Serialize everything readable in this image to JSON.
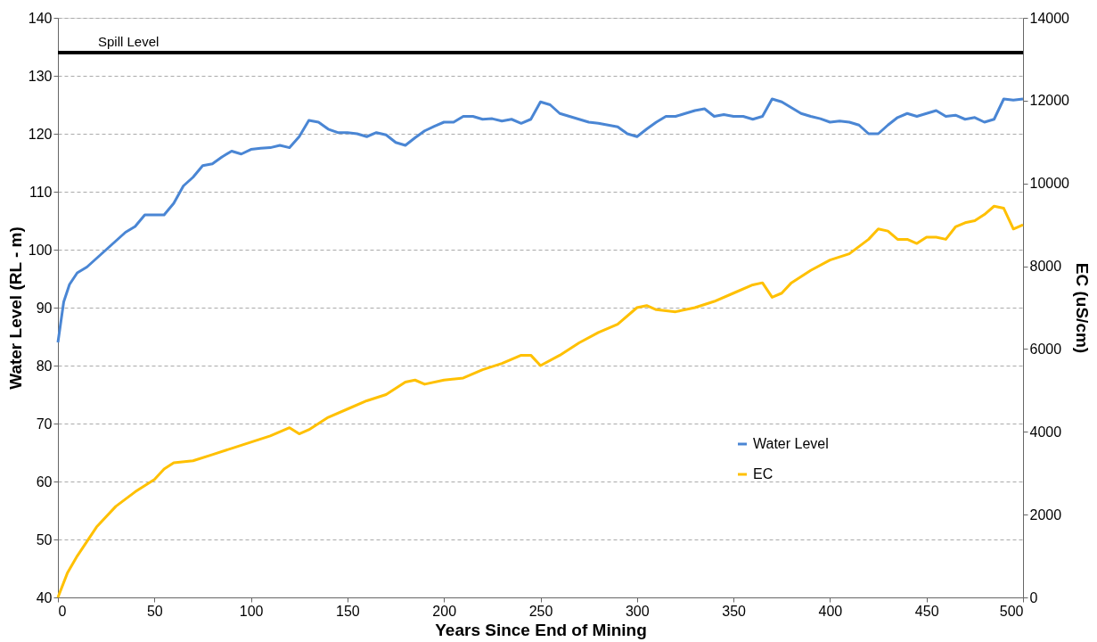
{
  "chart_data": {
    "type": "line",
    "xlabel": "Years Since End of Mining",
    "ylabel": "Water Level (RL - m)",
    "y2label": "EC (uS/cm)",
    "xlim": [
      0,
      500
    ],
    "xticks": [
      0,
      50,
      100,
      150,
      200,
      250,
      300,
      350,
      400,
      450,
      500
    ],
    "ylim": [
      40,
      140
    ],
    "yticks": [
      40,
      50,
      60,
      70,
      80,
      90,
      100,
      110,
      120,
      130,
      140
    ],
    "y2lim": [
      0,
      14000
    ],
    "y2ticks": [
      0,
      2000,
      4000,
      6000,
      8000,
      10000,
      12000,
      14000
    ],
    "grid": "y",
    "legend": "bottom right",
    "ref_lines": [
      {
        "axis": "y",
        "value": 134,
        "label": "Spill Level",
        "color": "#000000"
      }
    ],
    "series": [
      {
        "name": "Water Level",
        "color": "#4a86d4",
        "x": [
          0,
          3,
          6,
          10,
          15,
          20,
          25,
          30,
          35,
          40,
          45,
          50,
          55,
          60,
          65,
          70,
          75,
          80,
          85,
          90,
          95,
          100,
          105,
          110,
          115,
          120,
          125,
          130,
          135,
          140,
          145,
          150,
          155,
          160,
          165,
          170,
          175,
          180,
          185,
          190,
          195,
          200,
          205,
          210,
          215,
          220,
          225,
          230,
          235,
          240,
          245,
          250,
          255,
          260,
          265,
          270,
          275,
          280,
          285,
          290,
          295,
          300,
          305,
          310,
          315,
          320,
          325,
          330,
          335,
          340,
          345,
          350,
          355,
          360,
          365,
          370,
          375,
          380,
          385,
          390,
          395,
          400,
          405,
          410,
          415,
          420,
          425,
          430,
          435,
          440,
          445,
          450,
          455,
          460,
          465,
          470,
          475,
          480,
          485,
          490,
          495,
          500
        ],
        "values": [
          84,
          91,
          94,
          96,
          97,
          98.5,
          100,
          101.5,
          103,
          104,
          106,
          106,
          106,
          108,
          111,
          112.5,
          114.5,
          114.8,
          116,
          117,
          116.5,
          117.3,
          117.5,
          117.6,
          118,
          117.6,
          119.5,
          122.3,
          122,
          120.8,
          120.2,
          120.2,
          120,
          119.5,
          120.2,
          119.8,
          118.5,
          118,
          119.3,
          120.5,
          121.3,
          122,
          122,
          123,
          123,
          122.5,
          122.6,
          122.2,
          122.5,
          121.8,
          122.5,
          125.5,
          125,
          123.5,
          123,
          122.5,
          122,
          121.8,
          121.5,
          121.2,
          120,
          119.5,
          120.8,
          122,
          123,
          123,
          123.5,
          124,
          124.3,
          123,
          123.3,
          123,
          123,
          122.5,
          123,
          126,
          125.5,
          124.5,
          123.5,
          123,
          122.6,
          122,
          122.2,
          122,
          121.5,
          120,
          120,
          121.5,
          122.8,
          123.5,
          123,
          123.5,
          124,
          123,
          123.2,
          122.5,
          122.8,
          122,
          122.5,
          126,
          125.8,
          126
        ]
      },
      {
        "name": "EC",
        "color": "#ffc000",
        "axis": "y2",
        "x": [
          0,
          5,
          10,
          20,
          30,
          40,
          50,
          55,
          60,
          70,
          80,
          90,
          100,
          110,
          120,
          125,
          130,
          140,
          150,
          160,
          170,
          180,
          185,
          190,
          200,
          210,
          220,
          230,
          240,
          245,
          250,
          260,
          270,
          280,
          290,
          300,
          305,
          310,
          320,
          330,
          340,
          350,
          360,
          365,
          370,
          375,
          380,
          390,
          400,
          410,
          420,
          425,
          430,
          435,
          440,
          445,
          450,
          455,
          460,
          465,
          470,
          475,
          480,
          485,
          490,
          495,
          500
        ],
        "values": [
          0,
          600,
          1000,
          1700,
          2200,
          2550,
          2850,
          3100,
          3250,
          3300,
          3450,
          3600,
          3750,
          3900,
          4100,
          3950,
          4050,
          4350,
          4550,
          4750,
          4900,
          5200,
          5250,
          5150,
          5250,
          5300,
          5500,
          5650,
          5850,
          5850,
          5600,
          5850,
          6150,
          6400,
          6600,
          7000,
          7050,
          6950,
          6900,
          7000,
          7150,
          7350,
          7550,
          7600,
          7250,
          7350,
          7600,
          7900,
          8150,
          8300,
          8650,
          8900,
          8850,
          8650,
          8650,
          8550,
          8700,
          8700,
          8650,
          8950,
          9050,
          9100,
          9250,
          9450,
          9400,
          8900,
          9000
        ]
      }
    ]
  }
}
